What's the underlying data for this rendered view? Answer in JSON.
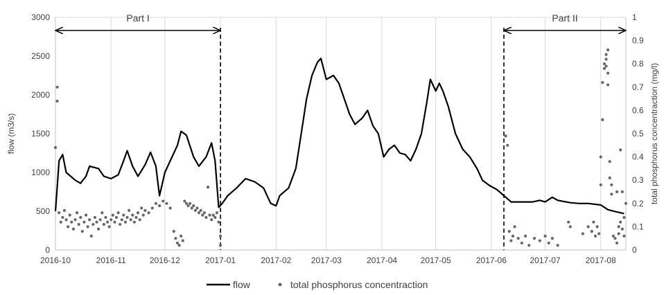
{
  "chart_data": {
    "type": "line",
    "xlabel": "",
    "ylabel": "flow (m3/s)",
    "y2label": "total phosphorus concentraction (mg/l)",
    "x_ticks": [
      "2016-10",
      "2016-11",
      "2016-12",
      "2017-01",
      "2017-02",
      "2017-03",
      "2017-04",
      "2017-05",
      "2017-06",
      "2017-07",
      "2017-08"
    ],
    "x_range": [
      "2016-10-01",
      "2017-08-15"
    ],
    "ylim": [
      0,
      3000
    ],
    "y_ticks": [
      "0",
      "500",
      "1000",
      "1500",
      "2000",
      "2500",
      "3000"
    ],
    "y2lim": [
      0,
      1
    ],
    "y2_ticks": [
      "0",
      "0.1",
      "0.2",
      "0.3",
      "0.4",
      "0.5",
      "0.6",
      "0.7",
      "0.8",
      "0.9",
      "1"
    ],
    "grid": "vertical",
    "legend": {
      "position": "bottom",
      "entries": [
        "flow",
        "total phosphorus concentraction"
      ]
    },
    "annotations": [
      {
        "label": "Part I",
        "from": "2016-10-01",
        "to": "2017-01-01"
      },
      {
        "label": "Part II",
        "from": "2017-06-08",
        "to": "2017-08-15"
      }
    ],
    "series": [
      {
        "name": "flow",
        "kind": "line",
        "axis": "left",
        "color": "#000000",
        "points": [
          [
            "2016-10-01",
            500
          ],
          [
            "2016-10-02",
            820
          ],
          [
            "2016-10-03",
            1150
          ],
          [
            "2016-10-05",
            1230
          ],
          [
            "2016-10-07",
            1000
          ],
          [
            "2016-10-12",
            900
          ],
          [
            "2016-10-15",
            860
          ],
          [
            "2016-10-18",
            950
          ],
          [
            "2016-10-20",
            1080
          ],
          [
            "2016-10-25",
            1050
          ],
          [
            "2016-10-28",
            950
          ],
          [
            "2016-11-01",
            920
          ],
          [
            "2016-11-05",
            970
          ],
          [
            "2016-11-08",
            1150
          ],
          [
            "2016-11-10",
            1280
          ],
          [
            "2016-11-13",
            1080
          ],
          [
            "2016-11-16",
            950
          ],
          [
            "2016-11-20",
            1100
          ],
          [
            "2016-11-23",
            1260
          ],
          [
            "2016-11-26",
            1080
          ],
          [
            "2016-11-28",
            700
          ],
          [
            "2016-12-01",
            1000
          ],
          [
            "2016-12-05",
            1200
          ],
          [
            "2016-12-08",
            1350
          ],
          [
            "2016-12-10",
            1530
          ],
          [
            "2016-12-13",
            1480
          ],
          [
            "2016-12-17",
            1200
          ],
          [
            "2016-12-20",
            1080
          ],
          [
            "2016-12-24",
            1200
          ],
          [
            "2016-12-27",
            1380
          ],
          [
            "2016-12-29",
            1150
          ],
          [
            "2016-12-31",
            550
          ],
          [
            "2017-01-02",
            600
          ],
          [
            "2017-01-05",
            700
          ],
          [
            "2017-01-10",
            800
          ],
          [
            "2017-01-15",
            920
          ],
          [
            "2017-01-20",
            880
          ],
          [
            "2017-01-25",
            800
          ],
          [
            "2017-01-29",
            600
          ],
          [
            "2017-02-01",
            570
          ],
          [
            "2017-02-03",
            700
          ],
          [
            "2017-02-08",
            800
          ],
          [
            "2017-02-12",
            1050
          ],
          [
            "2017-02-15",
            1500
          ],
          [
            "2017-02-18",
            1950
          ],
          [
            "2017-02-21",
            2250
          ],
          [
            "2017-02-24",
            2420
          ],
          [
            "2017-02-26",
            2470
          ],
          [
            "2017-03-01",
            2200
          ],
          [
            "2017-03-05",
            2250
          ],
          [
            "2017-03-08",
            2150
          ],
          [
            "2017-03-11",
            1950
          ],
          [
            "2017-03-14",
            1750
          ],
          [
            "2017-03-17",
            1620
          ],
          [
            "2017-03-21",
            1700
          ],
          [
            "2017-03-24",
            1800
          ],
          [
            "2017-03-27",
            1600
          ],
          [
            "2017-03-30",
            1500
          ],
          [
            "2017-04-02",
            1200
          ],
          [
            "2017-04-05",
            1300
          ],
          [
            "2017-04-08",
            1350
          ],
          [
            "2017-04-11",
            1250
          ],
          [
            "2017-04-14",
            1230
          ],
          [
            "2017-04-17",
            1150
          ],
          [
            "2017-04-20",
            1300
          ],
          [
            "2017-04-23",
            1500
          ],
          [
            "2017-04-26",
            1900
          ],
          [
            "2017-04-28",
            2200
          ],
          [
            "2017-05-01",
            2050
          ],
          [
            "2017-05-03",
            2150
          ],
          [
            "2017-05-05",
            2050
          ],
          [
            "2017-05-08",
            1850
          ],
          [
            "2017-05-12",
            1500
          ],
          [
            "2017-05-16",
            1300
          ],
          [
            "2017-05-20",
            1200
          ],
          [
            "2017-05-24",
            1050
          ],
          [
            "2017-05-27",
            900
          ],
          [
            "2017-05-31",
            830
          ],
          [
            "2017-06-04",
            780
          ],
          [
            "2017-06-08",
            700
          ],
          [
            "2017-06-12",
            620
          ],
          [
            "2017-06-18",
            620
          ],
          [
            "2017-06-24",
            620
          ],
          [
            "2017-06-28",
            640
          ],
          [
            "2017-07-01",
            620
          ],
          [
            "2017-07-05",
            680
          ],
          [
            "2017-07-08",
            640
          ],
          [
            "2017-07-15",
            610
          ],
          [
            "2017-07-20",
            600
          ],
          [
            "2017-07-25",
            600
          ],
          [
            "2017-08-01",
            580
          ],
          [
            "2017-08-05",
            520
          ],
          [
            "2017-08-10",
            490
          ],
          [
            "2017-08-14",
            470
          ]
        ]
      },
      {
        "name": "total phosphorus concentraction",
        "kind": "scatter",
        "axis": "right",
        "color": "#666666",
        "points": [
          [
            "2016-10-01",
            0.44
          ],
          [
            "2016-10-02",
            0.7
          ],
          [
            "2016-10-02",
            0.64
          ],
          [
            "2016-10-03",
            0.16
          ],
          [
            "2016-10-04",
            0.12
          ],
          [
            "2016-10-05",
            0.14
          ],
          [
            "2016-10-06",
            0.17
          ],
          [
            "2016-10-07",
            0.13
          ],
          [
            "2016-10-08",
            0.1
          ],
          [
            "2016-10-09",
            0.15
          ],
          [
            "2016-10-10",
            0.12
          ],
          [
            "2016-10-11",
            0.09
          ],
          [
            "2016-10-12",
            0.13
          ],
          [
            "2016-10-13",
            0.16
          ],
          [
            "2016-10-14",
            0.11
          ],
          [
            "2016-10-15",
            0.14
          ],
          [
            "2016-10-16",
            0.08
          ],
          [
            "2016-10-17",
            0.12
          ],
          [
            "2016-10-18",
            0.15
          ],
          [
            "2016-10-19",
            0.1
          ],
          [
            "2016-10-20",
            0.13
          ],
          [
            "2016-10-21",
            0.06
          ],
          [
            "2016-10-22",
            0.11
          ],
          [
            "2016-10-23",
            0.14
          ],
          [
            "2016-10-24",
            0.12
          ],
          [
            "2016-10-25",
            0.09
          ],
          [
            "2016-10-26",
            0.13
          ],
          [
            "2016-10-27",
            0.16
          ],
          [
            "2016-10-28",
            0.11
          ],
          [
            "2016-10-29",
            0.14
          ],
          [
            "2016-10-30",
            0.12
          ],
          [
            "2016-10-31",
            0.1
          ],
          [
            "2016-11-01",
            0.13
          ],
          [
            "2016-11-02",
            0.15
          ],
          [
            "2016-11-03",
            0.12
          ],
          [
            "2016-11-04",
            0.14
          ],
          [
            "2016-11-05",
            0.16
          ],
          [
            "2016-11-06",
            0.11
          ],
          [
            "2016-11-07",
            0.13
          ],
          [
            "2016-11-08",
            0.15
          ],
          [
            "2016-11-09",
            0.12
          ],
          [
            "2016-11-10",
            0.14
          ],
          [
            "2016-11-11",
            0.17
          ],
          [
            "2016-11-12",
            0.13
          ],
          [
            "2016-11-13",
            0.15
          ],
          [
            "2016-11-14",
            0.12
          ],
          [
            "2016-11-15",
            0.14
          ],
          [
            "2016-11-16",
            0.16
          ],
          [
            "2016-11-17",
            0.13
          ],
          [
            "2016-11-18",
            0.18
          ],
          [
            "2016-11-19",
            0.15
          ],
          [
            "2016-11-20",
            0.17
          ],
          [
            "2016-11-22",
            0.16
          ],
          [
            "2016-11-24",
            0.18
          ],
          [
            "2016-11-26",
            0.2
          ],
          [
            "2016-11-28",
            0.19
          ],
          [
            "2016-11-30",
            0.21
          ],
          [
            "2016-12-02",
            0.2
          ],
          [
            "2016-12-04",
            0.18
          ],
          [
            "2016-12-06",
            0.08
          ],
          [
            "2016-12-07",
            0.05
          ],
          [
            "2016-12-08",
            0.03
          ],
          [
            "2016-12-09",
            0.02
          ],
          [
            "2016-12-10",
            0.06
          ],
          [
            "2016-12-11",
            0.04
          ],
          [
            "2016-12-12",
            0.21
          ],
          [
            "2016-12-13",
            0.2
          ],
          [
            "2016-12-14",
            0.19
          ],
          [
            "2016-12-15",
            0.2
          ],
          [
            "2016-12-16",
            0.18
          ],
          [
            "2016-12-17",
            0.19
          ],
          [
            "2016-12-18",
            0.17
          ],
          [
            "2016-12-19",
            0.18
          ],
          [
            "2016-12-20",
            0.16
          ],
          [
            "2016-12-21",
            0.17
          ],
          [
            "2016-12-22",
            0.15
          ],
          [
            "2016-12-23",
            0.16
          ],
          [
            "2016-12-24",
            0.14
          ],
          [
            "2016-12-25",
            0.27
          ],
          [
            "2016-12-26",
            0.15
          ],
          [
            "2016-12-27",
            0.13
          ],
          [
            "2016-12-28",
            0.15
          ],
          [
            "2016-12-29",
            0.14
          ],
          [
            "2016-12-30",
            0.16
          ],
          [
            "2016-12-31",
            0.12
          ],
          [
            "2017-01-01",
            0.06
          ],
          [
            "2017-01-01",
            0.02
          ],
          [
            "2017-06-09",
            0.49
          ],
          [
            "2017-06-10",
            0.45
          ],
          [
            "2017-06-11",
            0.08
          ],
          [
            "2017-06-12",
            0.04
          ],
          [
            "2017-06-13",
            0.06
          ],
          [
            "2017-06-14",
            0.1
          ],
          [
            "2017-06-16",
            0.05
          ],
          [
            "2017-06-18",
            0.03
          ],
          [
            "2017-06-20",
            0.06
          ],
          [
            "2017-06-22",
            0.02
          ],
          [
            "2017-06-25",
            0.05
          ],
          [
            "2017-06-28",
            0.04
          ],
          [
            "2017-07-01",
            0.06
          ],
          [
            "2017-07-03",
            0.03
          ],
          [
            "2017-07-05",
            0.05
          ],
          [
            "2017-07-08",
            0.02
          ],
          [
            "2017-07-14",
            0.12
          ],
          [
            "2017-07-15",
            0.1
          ],
          [
            "2017-07-22",
            0.07
          ],
          [
            "2017-07-25",
            0.1
          ],
          [
            "2017-07-27",
            0.08
          ],
          [
            "2017-07-28",
            0.12
          ],
          [
            "2017-07-29",
            0.06
          ],
          [
            "2017-07-30",
            0.1
          ],
          [
            "2017-07-31",
            0.07
          ],
          [
            "2017-08-01",
            0.28
          ],
          [
            "2017-08-01",
            0.4
          ],
          [
            "2017-08-02",
            0.72
          ],
          [
            "2017-08-02",
            0.56
          ],
          [
            "2017-08-03",
            0.78
          ],
          [
            "2017-08-03",
            0.8
          ],
          [
            "2017-08-04",
            0.84
          ],
          [
            "2017-08-04",
            0.82
          ],
          [
            "2017-08-04",
            0.79
          ],
          [
            "2017-08-05",
            0.86
          ],
          [
            "2017-08-05",
            0.76
          ],
          [
            "2017-08-05",
            0.71
          ],
          [
            "2017-08-06",
            0.38
          ],
          [
            "2017-08-06",
            0.31
          ],
          [
            "2017-08-07",
            0.28
          ],
          [
            "2017-08-07",
            0.24
          ],
          [
            "2017-08-08",
            0.06
          ],
          [
            "2017-08-09",
            0.05
          ],
          [
            "2017-08-10",
            0.03
          ],
          [
            "2017-08-10",
            0.25
          ],
          [
            "2017-08-11",
            0.1
          ],
          [
            "2017-08-11",
            0.07
          ],
          [
            "2017-08-12",
            0.43
          ],
          [
            "2017-08-12",
            0.12
          ],
          [
            "2017-08-13",
            0.09
          ],
          [
            "2017-08-13",
            0.25
          ],
          [
            "2017-08-14",
            0.14
          ],
          [
            "2017-08-14",
            0.06
          ],
          [
            "2017-08-15",
            0.2
          ]
        ]
      }
    ]
  }
}
